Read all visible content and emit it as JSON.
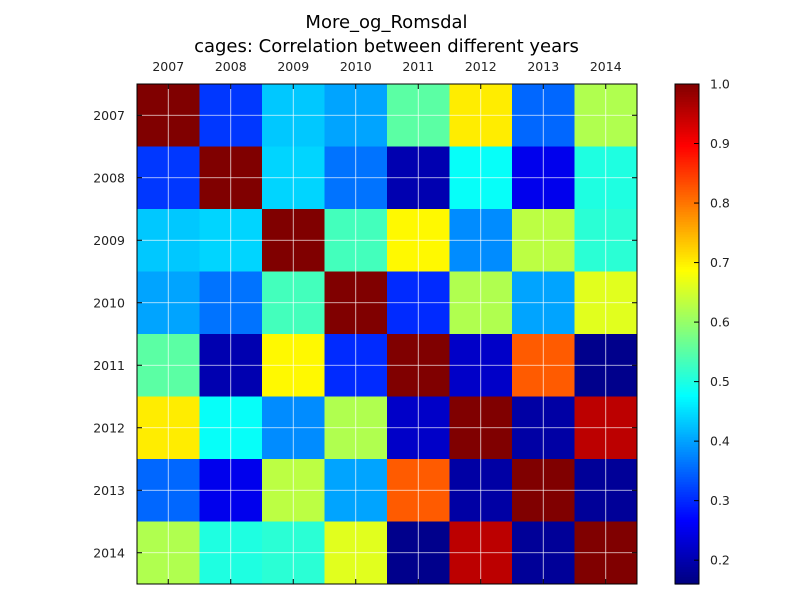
{
  "chart_data": {
    "type": "heatmap",
    "title": "More_og_Romsdal",
    "subtitle": "cages: Correlation between different years",
    "xlabel": "",
    "ylabel": "",
    "x_categories": [
      "2007",
      "2008",
      "2009",
      "2010",
      "2011",
      "2012",
      "2013",
      "2014"
    ],
    "y_categories": [
      "2007",
      "2008",
      "2009",
      "2010",
      "2011",
      "2012",
      "2013",
      "2014"
    ],
    "values": [
      [
        1.0,
        0.31,
        0.43,
        0.4,
        0.55,
        0.7,
        0.35,
        0.62
      ],
      [
        0.31,
        1.0,
        0.44,
        0.36,
        0.2,
        0.48,
        0.25,
        0.5
      ],
      [
        0.43,
        0.44,
        1.0,
        0.53,
        0.69,
        0.38,
        0.63,
        0.51
      ],
      [
        0.4,
        0.36,
        0.53,
        1.0,
        0.3,
        0.62,
        0.4,
        0.66
      ],
      [
        0.55,
        0.2,
        0.69,
        0.3,
        1.0,
        0.22,
        0.82,
        0.17
      ],
      [
        0.7,
        0.48,
        0.38,
        0.62,
        0.22,
        1.0,
        0.19,
        0.95
      ],
      [
        0.35,
        0.25,
        0.63,
        0.4,
        0.82,
        0.19,
        1.0,
        0.18
      ],
      [
        0.62,
        0.5,
        0.51,
        0.66,
        0.17,
        0.95,
        0.18,
        1.0
      ]
    ],
    "colormap": "jet",
    "vmin": 0.16,
    "vmax": 1.0,
    "colorbar_ticks": [
      "0.2",
      "0.3",
      "0.4",
      "0.5",
      "0.6",
      "0.7",
      "0.8",
      "0.9",
      "1.0"
    ],
    "grid": true,
    "x_tick_position": "top"
  }
}
